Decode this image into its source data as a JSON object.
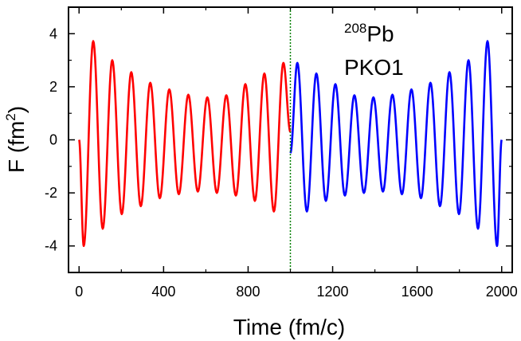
{
  "chart_data": {
    "type": "line",
    "xlabel": "Time (fm/c)",
    "ylabel": "F (fm",
    "ylabel_sup": "2",
    "ylabel_tail": ")",
    "xlim": [
      -50,
      2050
    ],
    "ylim": [
      -5,
      5
    ],
    "xticks": [
      0,
      400,
      800,
      1200,
      1600,
      2000
    ],
    "yticks": [
      -4,
      -2,
      0,
      2,
      4
    ],
    "xtick_labels": [
      "0",
      "400",
      "800",
      "1200",
      "1600",
      "2000"
    ],
    "ytick_labels": [
      "-4",
      "-2",
      "0",
      "2",
      "4"
    ],
    "annotation": {
      "nucleus_mass": "208",
      "nucleus_symbol": "Pb",
      "interaction": "PKO1"
    },
    "vline": {
      "x": 1000,
      "color": "#008000",
      "style": "dotted"
    },
    "series": [
      {
        "color": "#ff0000",
        "x_range": [
          0,
          1000
        ],
        "period": 90.2,
        "extrema": [
          [
            22,
            -4.0
          ],
          [
            67,
            3.72
          ],
          [
            112,
            -3.35
          ],
          [
            157,
            3.0
          ],
          [
            202,
            -2.8
          ],
          [
            247,
            2.55
          ],
          [
            292,
            -2.5
          ],
          [
            337,
            2.15
          ],
          [
            382,
            -2.2
          ],
          [
            427,
            1.9
          ],
          [
            472,
            -2.05
          ],
          [
            517,
            1.7
          ],
          [
            562,
            -1.95
          ],
          [
            607,
            1.6
          ],
          [
            652,
            -2.0
          ],
          [
            697,
            1.68
          ],
          [
            742,
            -2.1
          ],
          [
            787,
            2.1
          ],
          [
            832,
            -2.3
          ],
          [
            877,
            2.5
          ],
          [
            922,
            -2.7
          ],
          [
            967,
            2.9
          ]
        ]
      },
      {
        "color": "#0000ff",
        "x_range": [
          1000,
          2000
        ],
        "period": 90.2,
        "extrema": [
          [
            1033,
            2.9
          ],
          [
            1078,
            -2.7
          ],
          [
            1123,
            2.5
          ],
          [
            1168,
            -2.3
          ],
          [
            1213,
            2.1
          ],
          [
            1258,
            -2.1
          ],
          [
            1303,
            1.68
          ],
          [
            1348,
            -2.0
          ],
          [
            1393,
            1.6
          ],
          [
            1438,
            -1.95
          ],
          [
            1483,
            1.7
          ],
          [
            1528,
            -2.05
          ],
          [
            1573,
            1.9
          ],
          [
            1618,
            -2.2
          ],
          [
            1663,
            2.15
          ],
          [
            1708,
            -2.5
          ],
          [
            1753,
            2.55
          ],
          [
            1798,
            -2.8
          ],
          [
            1843,
            3.0
          ],
          [
            1888,
            -3.35
          ],
          [
            1933,
            3.72
          ],
          [
            1978,
            -4.0
          ]
        ]
      }
    ]
  }
}
